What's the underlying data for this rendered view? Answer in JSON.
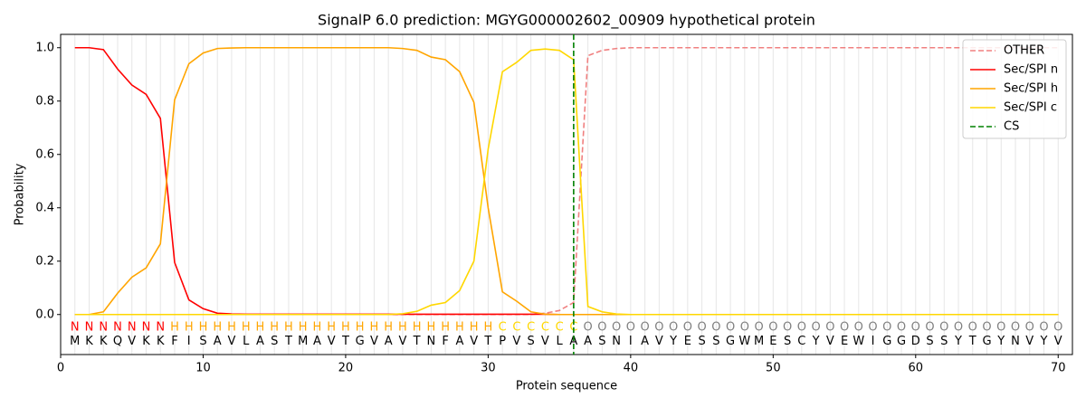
{
  "chart_data": {
    "type": "line",
    "title": "SignalP 6.0 prediction: MGYG000002602_00909 hypothetical protein",
    "x_label": "Protein sequence",
    "y_label": "Probability",
    "xlim": [
      0,
      71
    ],
    "ylim": [
      -0.15,
      1.05
    ],
    "xticks": [
      0,
      10,
      20,
      30,
      40,
      50,
      60,
      70
    ],
    "yticks": [
      {
        "value": 0,
        "label": "0.0"
      },
      {
        "value": 0.2,
        "label": "0.2"
      },
      {
        "value": 0.4,
        "label": "0.4"
      },
      {
        "value": 0.6,
        "label": "0.6"
      },
      {
        "value": 0.8,
        "label": "0.8"
      },
      {
        "value": 1,
        "label": "1.0"
      }
    ],
    "legend": "upper right",
    "x": [
      1,
      2,
      3,
      4,
      5,
      6,
      7,
      8,
      9,
      10,
      11,
      12,
      13,
      14,
      15,
      16,
      17,
      18,
      19,
      20,
      21,
      22,
      23,
      24,
      25,
      26,
      27,
      28,
      29,
      30,
      31,
      32,
      33,
      34,
      35,
      36,
      37,
      38,
      39,
      40,
      41,
      42,
      43,
      44,
      45,
      46,
      47,
      48,
      49,
      50,
      51,
      52,
      53,
      54,
      55,
      56,
      57,
      58,
      59,
      60,
      61,
      62,
      63,
      64,
      65,
      66,
      67,
      68,
      69,
      70
    ],
    "residues": [
      "M",
      "K",
      "K",
      "Q",
      "V",
      "K",
      "K",
      "F",
      "I",
      "S",
      "A",
      "V",
      "L",
      "A",
      "S",
      "T",
      "M",
      "A",
      "V",
      "T",
      "G",
      "V",
      "A",
      "V",
      "T",
      "N",
      "F",
      "A",
      "V",
      "T",
      "P",
      "V",
      "S",
      "V",
      "L",
      "A",
      "A",
      "S",
      "N",
      "I",
      "A",
      "V",
      "Y",
      "E",
      "S",
      "S",
      "G",
      "W",
      "M",
      "E",
      "S",
      "C",
      "Y",
      "V",
      "E",
      "W",
      "I",
      "G",
      "G",
      "D",
      "S",
      "S",
      "Y",
      "T",
      "G",
      "Y",
      "N",
      "V",
      "Y",
      "V"
    ],
    "labels": [
      "N",
      "N",
      "N",
      "N",
      "N",
      "N",
      "N",
      "H",
      "H",
      "H",
      "H",
      "H",
      "H",
      "H",
      "H",
      "H",
      "H",
      "H",
      "H",
      "H",
      "H",
      "H",
      "H",
      "H",
      "H",
      "H",
      "H",
      "H",
      "H",
      "H",
      "C",
      "C",
      "C",
      "C",
      "C",
      "C",
      "O",
      "O",
      "O",
      "O",
      "O",
      "O",
      "O",
      "O",
      "O",
      "O",
      "O",
      "O",
      "O",
      "O",
      "O",
      "O",
      "O",
      "O",
      "O",
      "O",
      "O",
      "O",
      "O",
      "O",
      "O",
      "O",
      "O",
      "O",
      "O",
      "O",
      "O",
      "O",
      "O",
      "O"
    ],
    "label_colors": {
      "N": "#ff0000",
      "H": "#ffa500",
      "C": "#ffd700",
      "O": "#808080"
    },
    "series": [
      {
        "name": "OTHER",
        "color": "#f08080",
        "dash": true,
        "values": [
          0,
          0,
          0,
          0,
          0,
          0,
          0,
          0,
          0,
          0,
          0,
          0,
          0,
          0,
          0,
          0,
          0,
          0,
          0,
          0,
          0,
          0,
          0,
          0,
          0,
          0,
          0,
          0,
          0,
          0,
          0,
          0,
          0,
          0.005,
          0.015,
          0.045,
          0.97,
          0.99,
          0.997,
          1,
          1,
          1,
          1,
          1,
          1,
          1,
          1,
          1,
          1,
          1,
          1,
          1,
          1,
          1,
          1,
          1,
          1,
          1,
          1,
          1,
          1,
          1,
          1,
          1,
          1,
          1,
          1,
          1,
          1,
          1
        ]
      },
      {
        "name": "Sec/SPI n",
        "color": "#ff0000",
        "dash": false,
        "values": [
          1.0,
          1.0,
          0.993,
          0.92,
          0.86,
          0.825,
          0.735,
          0.195,
          0.055,
          0.022,
          0.005,
          0.002,
          0.001,
          0.001,
          0.001,
          0.001,
          0.001,
          0.001,
          0.001,
          0.001,
          0.001,
          0.001,
          0.001,
          0.001,
          0.001,
          0.001,
          0.001,
          0.001,
          0.001,
          0.001,
          0.001,
          0.001,
          0.001,
          0.001,
          0,
          0,
          0,
          0,
          0,
          0,
          0,
          0,
          0,
          0,
          0,
          0,
          0,
          0,
          0,
          0,
          0,
          0,
          0,
          0,
          0,
          0,
          0,
          0,
          0,
          0,
          0,
          0,
          0,
          0,
          0,
          0,
          0,
          0,
          0,
          0
        ]
      },
      {
        "name": "Sec/SPI h",
        "color": "#ffa500",
        "dash": false,
        "values": [
          0,
          0,
          0.01,
          0.08,
          0.14,
          0.175,
          0.265,
          0.805,
          0.94,
          0.98,
          0.997,
          0.999,
          1,
          1,
          1,
          1,
          1,
          1,
          1,
          1,
          1,
          1,
          1,
          0.997,
          0.99,
          0.965,
          0.955,
          0.91,
          0.795,
          0.4,
          0.085,
          0.05,
          0.01,
          0.001,
          0,
          0,
          0,
          0,
          0,
          0,
          0,
          0,
          0,
          0,
          0,
          0,
          0,
          0,
          0,
          0,
          0,
          0,
          0,
          0,
          0,
          0,
          0,
          0,
          0,
          0,
          0,
          0,
          0,
          0,
          0,
          0,
          0,
          0,
          0,
          0
        ]
      },
      {
        "name": "Sec/SPI c",
        "color": "#ffd700",
        "dash": false,
        "values": [
          0,
          0,
          0,
          0,
          0,
          0,
          0,
          0,
          0,
          0,
          0,
          0,
          0,
          0,
          0,
          0,
          0,
          0,
          0,
          0,
          0,
          0,
          0,
          0.003,
          0.012,
          0.035,
          0.045,
          0.09,
          0.2,
          0.62,
          0.91,
          0.945,
          0.99,
          0.995,
          0.99,
          0.955,
          0.03,
          0.01,
          0.002,
          0,
          0,
          0,
          0,
          0,
          0,
          0,
          0,
          0,
          0,
          0,
          0,
          0,
          0,
          0,
          0,
          0,
          0,
          0,
          0,
          0,
          0,
          0,
          0,
          0,
          0,
          0,
          0,
          0,
          0,
          0
        ]
      }
    ],
    "cs": {
      "name": "CS",
      "x": 36,
      "color": "#008000"
    }
  }
}
